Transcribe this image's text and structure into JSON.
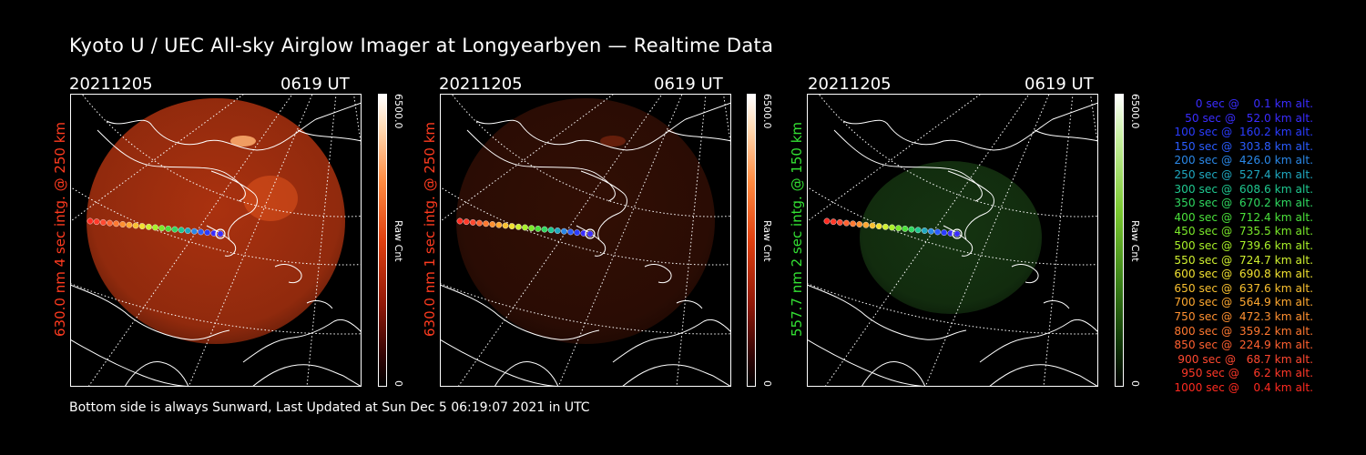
{
  "title": "Kyoto U / UEC All-sky Airglow Imager at Longyearbyen — Realtime Data",
  "footer": "Bottom side is always Sunward, Last Updated at Sun Dec  5 06:19:07 2021 in UTC",
  "panels": [
    {
      "date": "20211205",
      "time": "0619 UT",
      "label": "630.0 nm 4 sec intg. @ 250 km",
      "label_color": "#ff3b1f",
      "max": "6500.0",
      "min": "0",
      "unit": "Raw Cnt",
      "glow_color": "#c83a12",
      "glow_intensity": 0.85,
      "colorbar": "red"
    },
    {
      "date": "20211205",
      "time": "0619 UT",
      "label": "630.0 nm 1 sec intg. @ 250 km",
      "label_color": "#ff3b1f",
      "max": "6500.0",
      "min": "0",
      "unit": "Raw Cnt",
      "glow_color": "#5a1a08",
      "glow_intensity": 0.55,
      "colorbar": "red"
    },
    {
      "date": "20211205",
      "time": "0619 UT",
      "label": "557.7 nm 2 sec intg. @ 150 km",
      "label_color": "#33e033",
      "max": "6500.0",
      "min": "0",
      "unit": "Raw Cnt",
      "glow_color": "#1e4a18",
      "glow_intensity": 0.7,
      "colorbar": "green"
    }
  ],
  "legend": [
    {
      "text": "0 sec @    0.1 km alt.",
      "color": "#3a2cff"
    },
    {
      "text": "50 sec @   52.0 km alt.",
      "color": "#3a2cff"
    },
    {
      "text": "100 sec @  160.2 km alt.",
      "color": "#2a3cff"
    },
    {
      "text": "150 sec @  303.8 km alt.",
      "color": "#2a5cff"
    },
    {
      "text": "200 sec @  426.0 km alt.",
      "color": "#2a88e8"
    },
    {
      "text": "250 sec @  527.4 km alt.",
      "color": "#1fa8c0"
    },
    {
      "text": "300 sec @  608.6 km alt.",
      "color": "#1fc890"
    },
    {
      "text": "350 sec @  670.2 km alt.",
      "color": "#2fd860"
    },
    {
      "text": "400 sec @  712.4 km alt.",
      "color": "#4ae03a"
    },
    {
      "text": "450 sec @  735.5 km alt.",
      "color": "#7ae82a"
    },
    {
      "text": "500 sec @  739.6 km alt.",
      "color": "#a8f028"
    },
    {
      "text": "550 sec @  724.7 km alt.",
      "color": "#d0f030"
    },
    {
      "text": "600 sec @  690.8 km alt.",
      "color": "#f0e030"
    },
    {
      "text": "650 sec @  637.6 km alt.",
      "color": "#f8c030"
    },
    {
      "text": "700 sec @  564.9 km alt.",
      "color": "#ffa830"
    },
    {
      "text": "750 sec @  472.3 km alt.",
      "color": "#ff9030"
    },
    {
      "text": "800 sec @  359.2 km alt.",
      "color": "#ff7830"
    },
    {
      "text": "850 sec @  224.9 km alt.",
      "color": "#ff6030"
    },
    {
      "text": "900 sec @   68.7 km alt.",
      "color": "#ff4830"
    },
    {
      "text": "950 sec @    6.2 km alt.",
      "color": "#ff3828"
    },
    {
      "text": "1000 sec @    0.4 km alt.",
      "color": "#ff2a20"
    }
  ]
}
